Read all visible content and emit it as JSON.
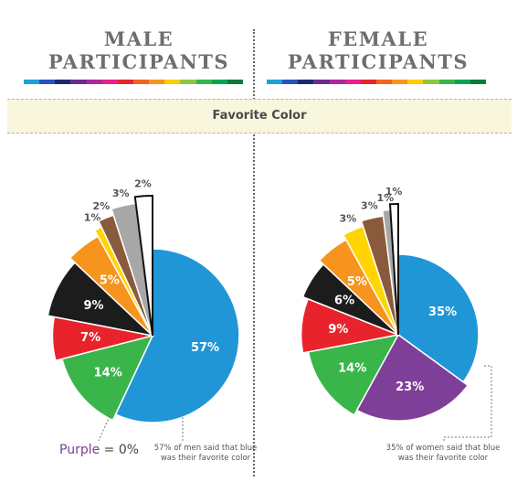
{
  "header": {
    "male_title_line1": "MALE",
    "male_title_line2": "PARTICIPANTS",
    "female_title_line1": "FEMALE",
    "female_title_line2": "PARTICIPANTS",
    "band_label": "Favorite Color",
    "bar_colors": [
      "#1da1d8",
      "#2a52be",
      "#1b2a6b",
      "#6b2c91",
      "#b0279a",
      "#e8208c",
      "#e3262e",
      "#f26522",
      "#f7941d",
      "#ffcc00",
      "#8dc63f",
      "#39b54a",
      "#00a651",
      "#0b7a3e"
    ]
  },
  "chart_data": [
    {
      "type": "pie",
      "title": "MALE PARTICIPANTS",
      "slices": [
        {
          "label": "57%",
          "value": 57,
          "color": "#2196d6",
          "text_color": "#ffffff"
        },
        {
          "label": "14%",
          "value": 14,
          "color": "#3ab54a",
          "text_color": "#ffffff"
        },
        {
          "label": "7%",
          "value": 7,
          "color": "#e8232b",
          "text_color": "#ffffff"
        },
        {
          "label": "9%",
          "value": 9,
          "color": "#1c1c1c",
          "text_color": "#ffffff"
        },
        {
          "label": "5%",
          "value": 5,
          "color": "#f7941d",
          "text_color": "#ffffff"
        },
        {
          "label": "1%",
          "value": 1,
          "color": "#ffd400",
          "text_color": "#555555"
        },
        {
          "label": "2%",
          "value": 2,
          "color": "#8a5a3c",
          "text_color": "#555555"
        },
        {
          "label": "3%",
          "value": 3,
          "color": "#a7a7a7",
          "text_color": "#555555"
        },
        {
          "label": "2%",
          "value": 2,
          "color": "#ffffff",
          "text_color": "#555555"
        }
      ],
      "annotation": "57% of men said that blue was their favorite color",
      "zero_label": "Purple",
      "zero_value": "= 0%"
    },
    {
      "type": "pie",
      "title": "FEMALE PARTICIPANTS",
      "slices": [
        {
          "label": "35%",
          "value": 35,
          "color": "#2196d6",
          "text_color": "#ffffff"
        },
        {
          "label": "23%",
          "value": 23,
          "color": "#7e3f98",
          "text_color": "#ffffff"
        },
        {
          "label": "14%",
          "value": 14,
          "color": "#3ab54a",
          "text_color": "#ffffff"
        },
        {
          "label": "9%",
          "value": 9,
          "color": "#e8232b",
          "text_color": "#ffffff"
        },
        {
          "label": "6%",
          "value": 6,
          "color": "#1c1c1c",
          "text_color": "#ffffff"
        },
        {
          "label": "5%",
          "value": 5,
          "color": "#f7941d",
          "text_color": "#ffffff"
        },
        {
          "label": "3%",
          "value": 3,
          "color": "#ffd400",
          "text_color": "#555555"
        },
        {
          "label": "3%",
          "value": 3,
          "color": "#8a5a3c",
          "text_color": "#555555"
        },
        {
          "label": "1%",
          "value": 1,
          "color": "#a7a7a7",
          "text_color": "#555555"
        },
        {
          "label": "1%",
          "value": 1,
          "color": "#ffffff",
          "text_color": "#555555"
        }
      ],
      "annotation": "35% of women said that blue was their favorite color"
    }
  ]
}
